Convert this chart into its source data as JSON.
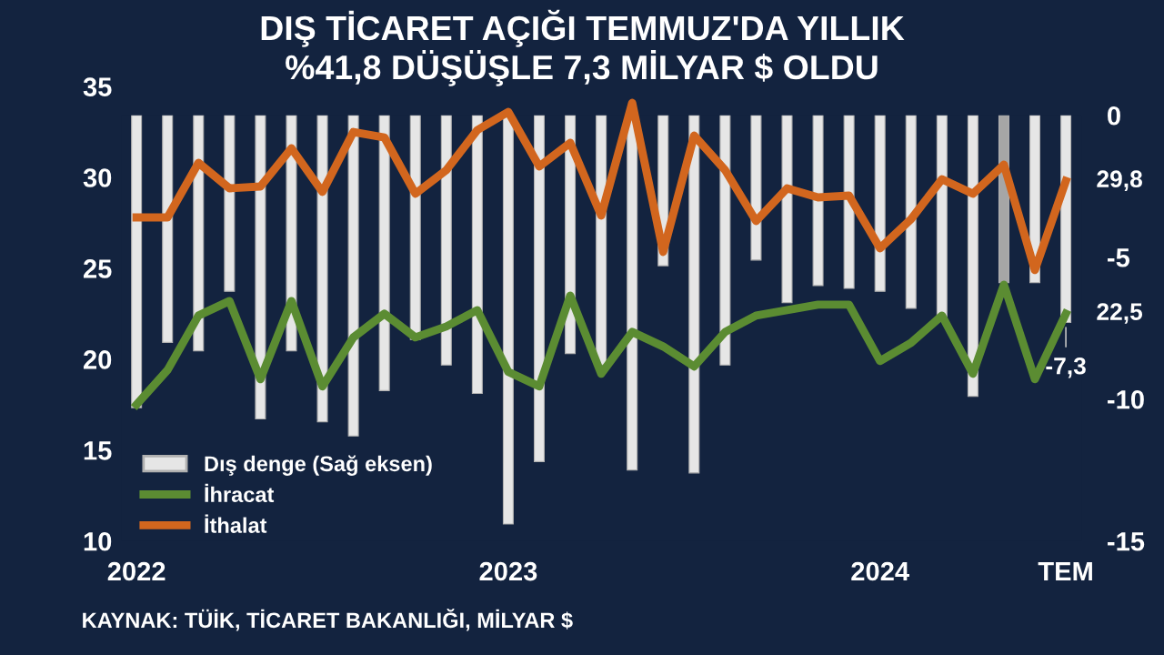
{
  "chart_data": {
    "type": "line",
    "title": "DIŞ TİCARET AÇIĞI TEMMUZ'DA YILLIK\n%41,8 DÜŞÜŞLE 7,3 MİLYAR $ OLDU",
    "categories": [
      "2022",
      null,
      null,
      null,
      null,
      null,
      null,
      null,
      null,
      null,
      null,
      null,
      "2023",
      null,
      null,
      null,
      null,
      null,
      null,
      null,
      null,
      null,
      null,
      null,
      "2024",
      null,
      null,
      null,
      null,
      null,
      "TEM"
    ],
    "series": [
      {
        "name": "Dış denge (Sağ eksen)",
        "type": "bar",
        "axis": "y2",
        "color": "#e6e6e6",
        "colors": [
          "#e6e6e6",
          "#e6e6e6",
          "#e6e6e6",
          "#e6e6e6",
          "#e6e6e6",
          "#e6e6e6",
          "#e6e6e6",
          "#e6e6e6",
          "#e6e6e6",
          "#e6e6e6",
          "#e6e6e6",
          "#e6e6e6",
          "#e6e6e6",
          "#e6e6e6",
          "#e6e6e6",
          "#e6e6e6",
          "#e6e6e6",
          "#e6e6e6",
          "#e6e6e6",
          "#e6e6e6",
          "#e6e6e6",
          "#e6e6e6",
          "#e6e6e6",
          "#e6e6e6",
          "#e6e6e6",
          "#e6e6e6",
          "#e6e6e6",
          "#e6e6e6",
          "#a6a6a6",
          "#e6e6e6",
          "#e6e6e6"
        ],
        "values": [
          -10.3,
          -8.0,
          -8.3,
          -6.2,
          -10.7,
          -8.3,
          -10.8,
          -11.3,
          -9.7,
          -7.9,
          -8.8,
          -9.8,
          -14.4,
          -12.2,
          -8.4,
          -8.8,
          -12.5,
          -5.3,
          -12.6,
          -8.8,
          -5.1,
          -6.6,
          -6.0,
          -6.1,
          -6.2,
          -6.8,
          -7.1,
          -9.9,
          -5.9,
          -5.9,
          -7.3
        ],
        "value_labels": [
          null,
          null,
          null,
          null,
          null,
          null,
          null,
          null,
          null,
          null,
          null,
          null,
          null,
          null,
          null,
          null,
          null,
          null,
          null,
          null,
          null,
          null,
          null,
          null,
          null,
          null,
          null,
          null,
          null,
          null,
          "-7,3"
        ]
      },
      {
        "name": "İhracat",
        "color": "#5b8c32",
        "values": [
          17.5,
          19.4,
          22.4,
          23.2,
          18.9,
          23.2,
          18.5,
          21.2,
          22.5,
          21.2,
          21.8,
          22.7,
          19.3,
          18.5,
          23.5,
          19.2,
          21.5,
          20.7,
          19.6,
          21.5,
          22.4,
          22.7,
          23.0,
          23.0,
          19.9,
          20.9,
          22.4,
          19.2,
          24.1,
          18.9,
          22.5
        ],
        "value_labels": [
          null,
          null,
          null,
          null,
          null,
          null,
          null,
          null,
          null,
          null,
          null,
          null,
          null,
          null,
          null,
          null,
          null,
          null,
          null,
          null,
          null,
          null,
          null,
          null,
          null,
          null,
          null,
          null,
          null,
          null,
          "22,5"
        ]
      },
      {
        "name": "İthalat",
        "color": "#d2661e",
        "values": [
          27.8,
          27.8,
          30.8,
          29.4,
          29.5,
          31.6,
          29.2,
          32.5,
          32.2,
          29.1,
          30.4,
          32.6,
          33.6,
          30.6,
          31.9,
          27.9,
          34.1,
          25.9,
          32.3,
          30.4,
          27.6,
          29.4,
          28.9,
          29.0,
          26.1,
          27.7,
          29.9,
          29.1,
          30.7,
          24.9,
          29.8
        ],
        "value_labels": [
          null,
          null,
          null,
          null,
          null,
          null,
          null,
          null,
          null,
          null,
          null,
          null,
          null,
          null,
          null,
          null,
          null,
          null,
          null,
          null,
          null,
          null,
          null,
          null,
          null,
          null,
          null,
          null,
          null,
          null,
          "29,8"
        ]
      }
    ],
    "ylim": [
      10,
      35
    ],
    "yticks": [
      10,
      15,
      20,
      25,
      30,
      35
    ],
    "y2lim": [
      -15,
      0
    ],
    "y2ticks": [
      0,
      {
        "value": -5,
        "label": "-5"
      },
      {
        "value": -10,
        "label": "-10"
      },
      {
        "value": -15,
        "label": "-15"
      }
    ],
    "grid": false,
    "legend": "bottom left",
    "marker": "none",
    "line_style": "solid",
    "annotations": [
      "KAYNAK: TÜİK, TİCARET BAKANLIĞI, MİLYAR $"
    ]
  }
}
